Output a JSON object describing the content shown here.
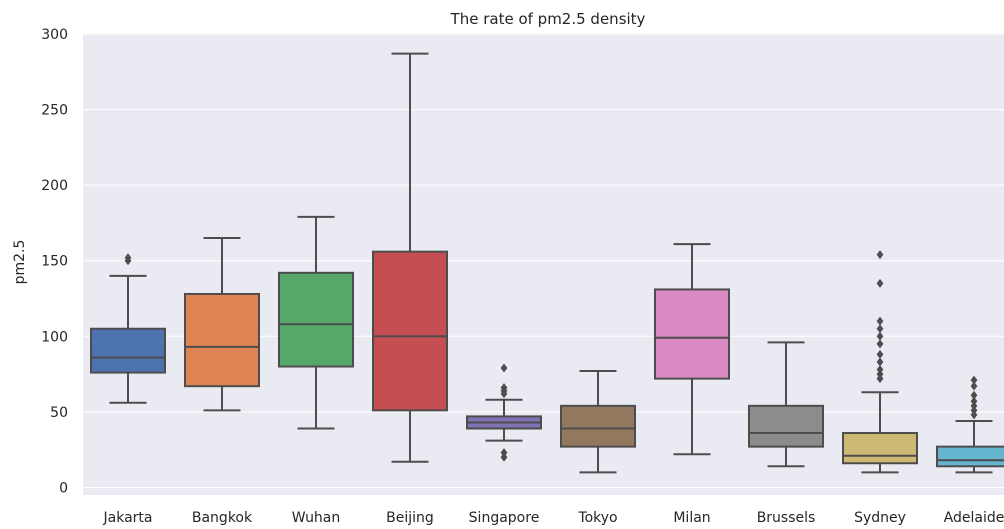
{
  "chart_data": {
    "type": "box",
    "title": "The rate of pm2.5 density",
    "xlabel": "",
    "ylabel": "pm2.5",
    "ylim": [
      -5,
      300
    ],
    "yticks": [
      0,
      50,
      100,
      150,
      200,
      250,
      300
    ],
    "grid": true,
    "colors": {
      "plot_background": "#eaeaf2",
      "grid": "#ffffff",
      "box_edge": "#4d4d4d"
    },
    "categories": [
      {
        "name": "Jakarta",
        "color": "#4c72b0",
        "whisker_low": 56,
        "q1": 76,
        "median": 86,
        "q3": 105,
        "whisker_high": 140,
        "outliers": [
          150,
          152
        ]
      },
      {
        "name": "Bangkok",
        "color": "#dd8452",
        "whisker_low": 51,
        "q1": 67,
        "median": 93,
        "q3": 128,
        "whisker_high": 165,
        "outliers": []
      },
      {
        "name": "Wuhan",
        "color": "#55a868",
        "whisker_low": 39,
        "q1": 80,
        "median": 108,
        "q3": 142,
        "whisker_high": 179,
        "outliers": []
      },
      {
        "name": "Beijing",
        "color": "#c44e52",
        "whisker_low": 17,
        "q1": 51,
        "median": 100,
        "q3": 156,
        "whisker_high": 287,
        "outliers": []
      },
      {
        "name": "Singapore",
        "color": "#8172b3",
        "whisker_low": 31,
        "q1": 39,
        "median": 43,
        "q3": 47,
        "whisker_high": 58,
        "outliers": [
          20,
          23,
          62,
          64,
          66,
          79
        ]
      },
      {
        "name": "Tokyo",
        "color": "#937860",
        "whisker_low": 10,
        "q1": 27,
        "median": 39,
        "q3": 54,
        "whisker_high": 77,
        "outliers": []
      },
      {
        "name": "Milan",
        "color": "#da8bc3",
        "whisker_low": 22,
        "q1": 72,
        "median": 99,
        "q3": 131,
        "whisker_high": 161,
        "outliers": []
      },
      {
        "name": "Brussels",
        "color": "#8c8c8c",
        "whisker_low": 14,
        "q1": 27,
        "median": 36,
        "q3": 54,
        "whisker_high": 96,
        "outliers": []
      },
      {
        "name": "Sydney",
        "color": "#ccb974",
        "whisker_low": 10,
        "q1": 16,
        "median": 21,
        "q3": 36,
        "whisker_high": 63,
        "outliers": [
          72,
          75,
          78,
          83,
          88,
          95,
          100,
          105,
          110,
          135,
          154
        ]
      },
      {
        "name": "Adelaide",
        "color": "#64b5cd",
        "whisker_low": 10,
        "q1": 14,
        "median": 18,
        "q3": 27,
        "whisker_high": 44,
        "outliers": [
          48,
          51,
          54,
          57,
          61,
          67,
          71
        ]
      }
    ]
  }
}
